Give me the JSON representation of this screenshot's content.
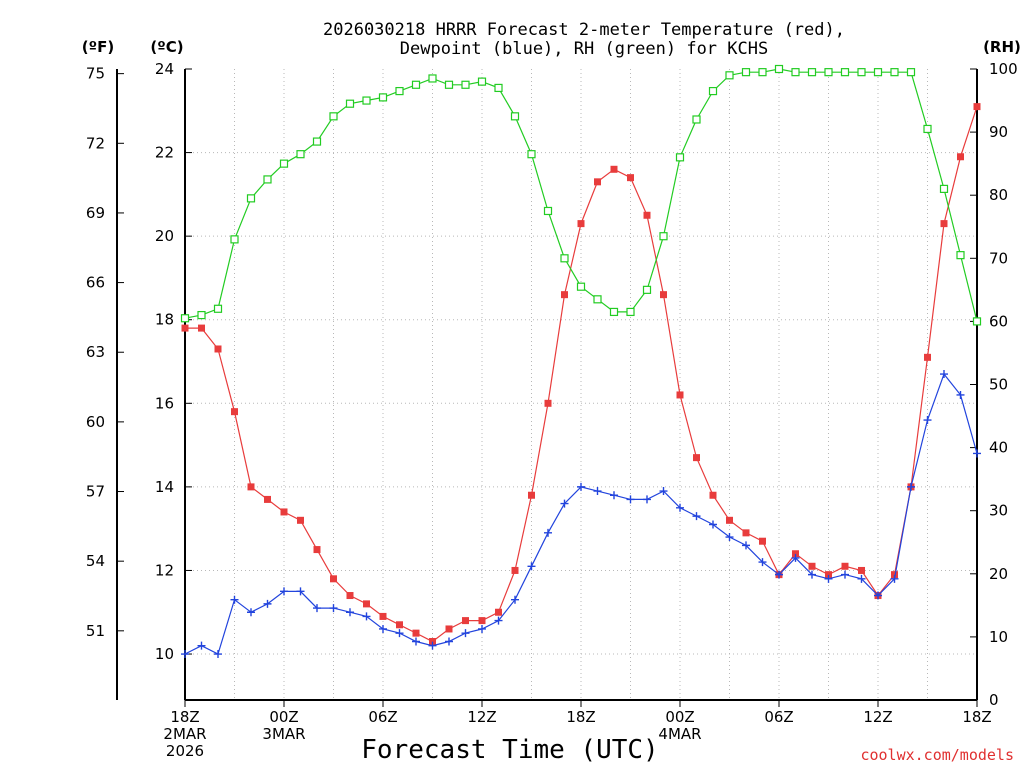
{
  "chart_data": {
    "type": "line",
    "title_line1": "2026030218 HRRR Forecast 2-meter Temperature (red),",
    "title_line2": "Dewpoint (blue), RH (green) for KCHS",
    "unit_f": "(ºF)",
    "unit_c": "(ºC)",
    "unit_rh": "(RH)",
    "xlabel": "Forecast Time (UTC)",
    "credit": "coolwx.com/models",
    "y_c_range": [
      8.9,
      24
    ],
    "y_rh_range": [
      0,
      100
    ],
    "f_ticks": [
      "51",
      "54",
      "57",
      "60",
      "63",
      "66",
      "69",
      "72",
      "75"
    ],
    "c_ticks": [
      "10",
      "12",
      "14",
      "16",
      "18",
      "20",
      "22",
      "24"
    ],
    "rh_ticks": [
      "0",
      "10",
      "20",
      "30",
      "40",
      "50",
      "60",
      "70",
      "80",
      "90",
      "100"
    ],
    "x_ticks": [
      {
        "h": 0,
        "lines": [
          "18Z",
          "2MAR",
          "2026"
        ]
      },
      {
        "h": 6,
        "lines": [
          "00Z",
          "3MAR"
        ]
      },
      {
        "h": 12,
        "lines": [
          "06Z"
        ]
      },
      {
        "h": 18,
        "lines": [
          "12Z"
        ]
      },
      {
        "h": 24,
        "lines": [
          "18Z"
        ]
      },
      {
        "h": 30,
        "lines": [
          "00Z",
          "4MAR"
        ]
      },
      {
        "h": 36,
        "lines": [
          "06Z"
        ]
      },
      {
        "h": 42,
        "lines": [
          "12Z"
        ]
      },
      {
        "h": 48,
        "lines": [
          "18Z"
        ]
      }
    ],
    "hours": [
      0,
      1,
      2,
      3,
      4,
      5,
      6,
      7,
      8,
      9,
      10,
      11,
      12,
      13,
      14,
      15,
      16,
      17,
      18,
      19,
      20,
      21,
      22,
      23,
      24,
      25,
      26,
      27,
      28,
      29,
      30,
      31,
      32,
      33,
      34,
      35,
      36,
      37,
      38,
      39,
      40,
      41,
      42,
      43,
      44,
      45,
      46,
      47,
      48
    ],
    "series": [
      {
        "name": "Temperature",
        "color": "#e83c3c",
        "marker": "filled-square",
        "values": [
          17.8,
          17.8,
          17.3,
          15.8,
          14.0,
          13.7,
          13.4,
          13.2,
          12.5,
          11.8,
          11.4,
          11.2,
          10.9,
          10.7,
          10.5,
          10.3,
          10.6,
          10.8,
          10.8,
          11.0,
          12.0,
          13.8,
          16.0,
          18.6,
          20.3,
          21.3,
          21.6,
          21.4,
          20.5,
          18.6,
          16.2,
          14.7,
          13.8,
          13.2,
          12.9,
          12.7,
          11.9,
          12.4,
          12.1,
          11.9,
          12.1,
          12.0,
          11.4,
          11.9,
          14.0,
          17.1,
          20.3,
          21.9,
          23.1
        ]
      },
      {
        "name": "Dewpoint",
        "color": "#2244dd",
        "marker": "plus",
        "values": [
          10.0,
          10.2,
          10.0,
          11.3,
          11.0,
          11.2,
          11.5,
          11.5,
          11.1,
          11.1,
          11.0,
          10.9,
          10.6,
          10.5,
          10.3,
          10.2,
          10.3,
          10.5,
          10.6,
          10.8,
          11.3,
          12.1,
          12.9,
          13.6,
          14.0,
          13.9,
          13.8,
          13.7,
          13.7,
          13.9,
          13.5,
          13.3,
          13.1,
          12.8,
          12.6,
          12.2,
          11.9,
          12.3,
          11.9,
          11.8,
          11.9,
          11.8,
          11.4,
          11.8,
          14.0,
          15.6,
          16.7,
          16.2,
          14.8
        ]
      },
      {
        "name": "RH",
        "color": "#22cc22",
        "marker": "open-square",
        "values": [
          60.5,
          61,
          62,
          73,
          79.5,
          82.5,
          85,
          86.5,
          88.5,
          92.5,
          94.5,
          95,
          95.5,
          96.5,
          97.5,
          98.5,
          97.5,
          97.5,
          98,
          97,
          92.5,
          86.5,
          77.5,
          70,
          65.5,
          63.5,
          61.5,
          61.5,
          65,
          73.5,
          86,
          92,
          96.5,
          99,
          99.5,
          99.5,
          100,
          99.5,
          99.5,
          99.5,
          99.5,
          99.5,
          99.5,
          99.5,
          99.5,
          90.5,
          81,
          70.5,
          60
        ]
      }
    ]
  }
}
